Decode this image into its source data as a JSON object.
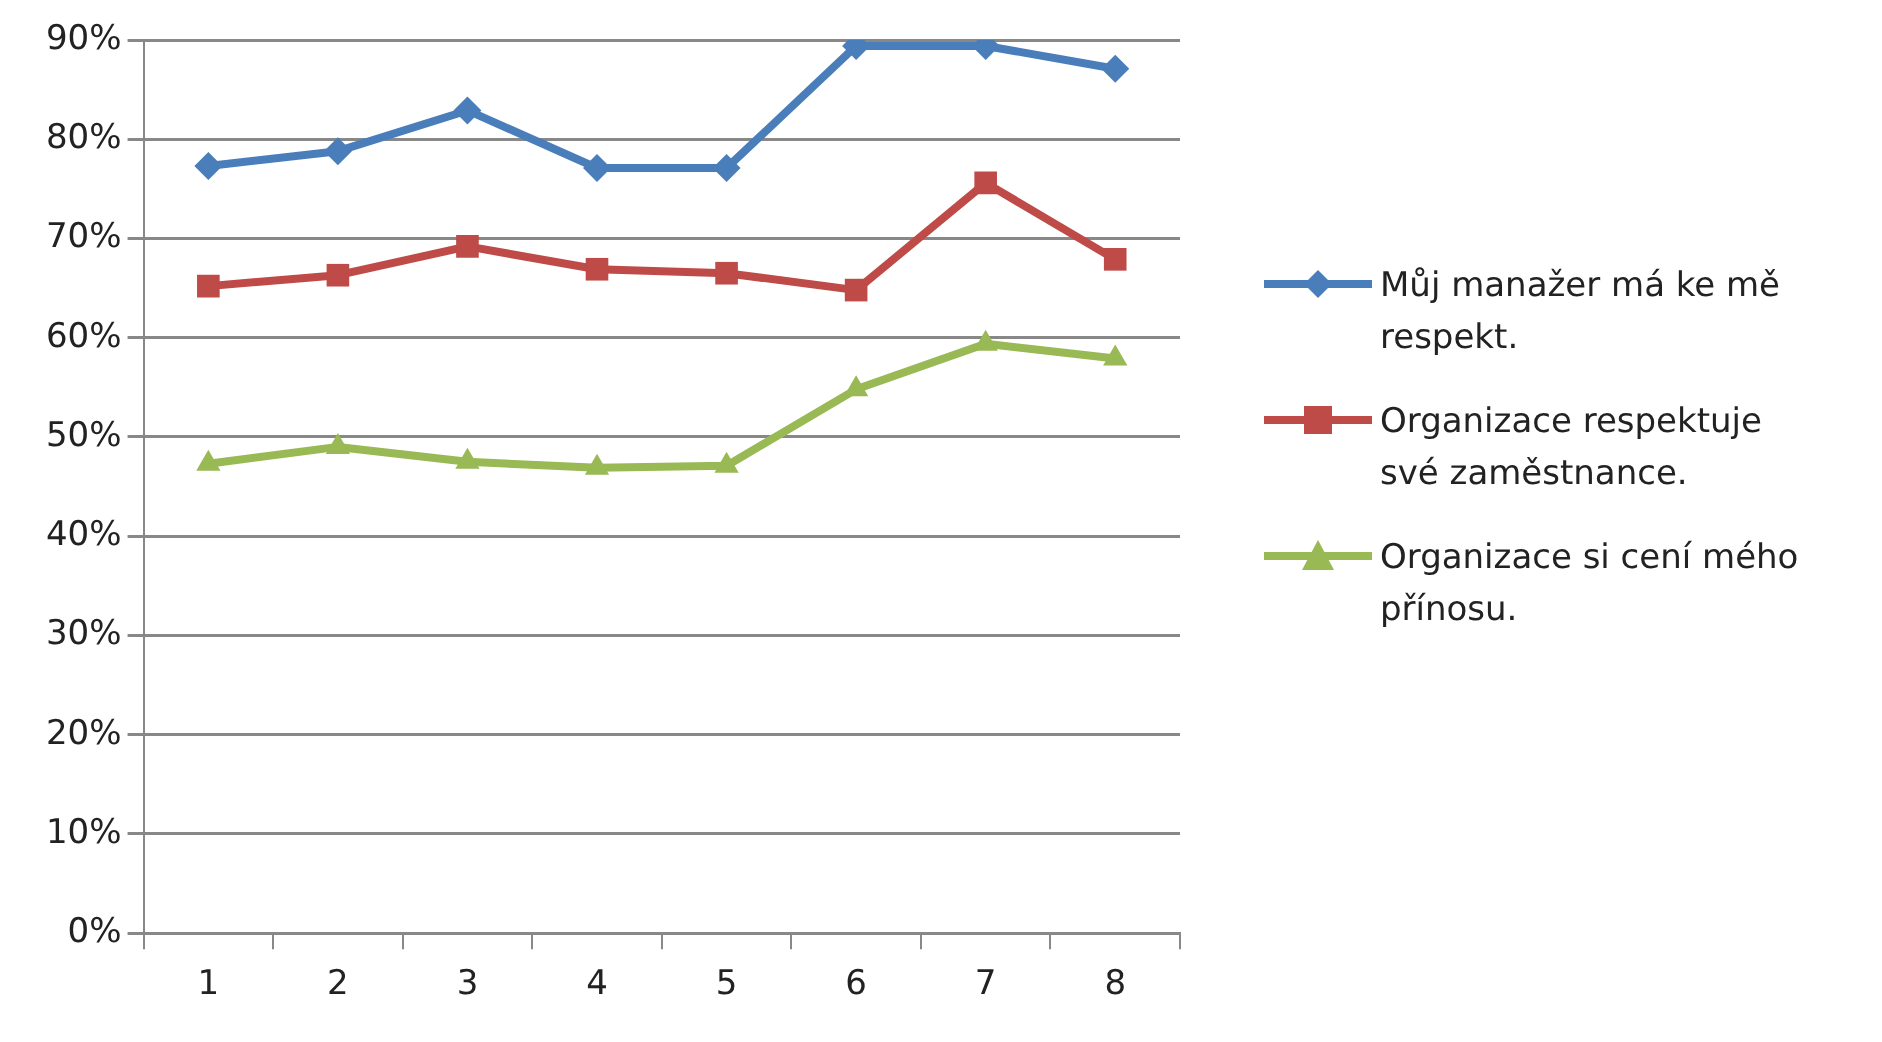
{
  "chart_data": {
    "type": "line",
    "categories": [
      "1",
      "2",
      "3",
      "4",
      "5",
      "6",
      "7",
      "8"
    ],
    "series": [
      {
        "name": "Můj manažer má ke mě respekt.",
        "color": "#4a7ebb",
        "marker": "diamond",
        "values": [
          77.3,
          78.8,
          82.9,
          77.1,
          77.1,
          89.4,
          89.4,
          87.1
        ]
      },
      {
        "name": "Organizace respektuje své zaměstnance.",
        "color": "#be4b48",
        "marker": "square",
        "values": [
          65.2,
          66.3,
          69.2,
          66.9,
          66.5,
          64.8,
          75.6,
          67.9
        ]
      },
      {
        "name": "Organizace si cení mého přínosu.",
        "color": "#98b954",
        "marker": "triangle",
        "values": [
          47.3,
          49.0,
          47.5,
          46.9,
          47.1,
          54.8,
          59.4,
          57.9
        ]
      }
    ],
    "ylim": [
      0,
      90
    ],
    "yticks": [
      {
        "value": 0,
        "label": "0%"
      },
      {
        "value": 10,
        "label": "10%"
      },
      {
        "value": 20,
        "label": "20%"
      },
      {
        "value": 30,
        "label": "30%"
      },
      {
        "value": 40,
        "label": "40%"
      },
      {
        "value": 50,
        "label": "50%"
      },
      {
        "value": 60,
        "label": "60%"
      },
      {
        "value": 70,
        "label": "70%"
      },
      {
        "value": 80,
        "label": "80%"
      },
      {
        "value": 90,
        "label": "90%"
      }
    ],
    "grid": "y",
    "legend": "right",
    "line_style": "solid"
  }
}
